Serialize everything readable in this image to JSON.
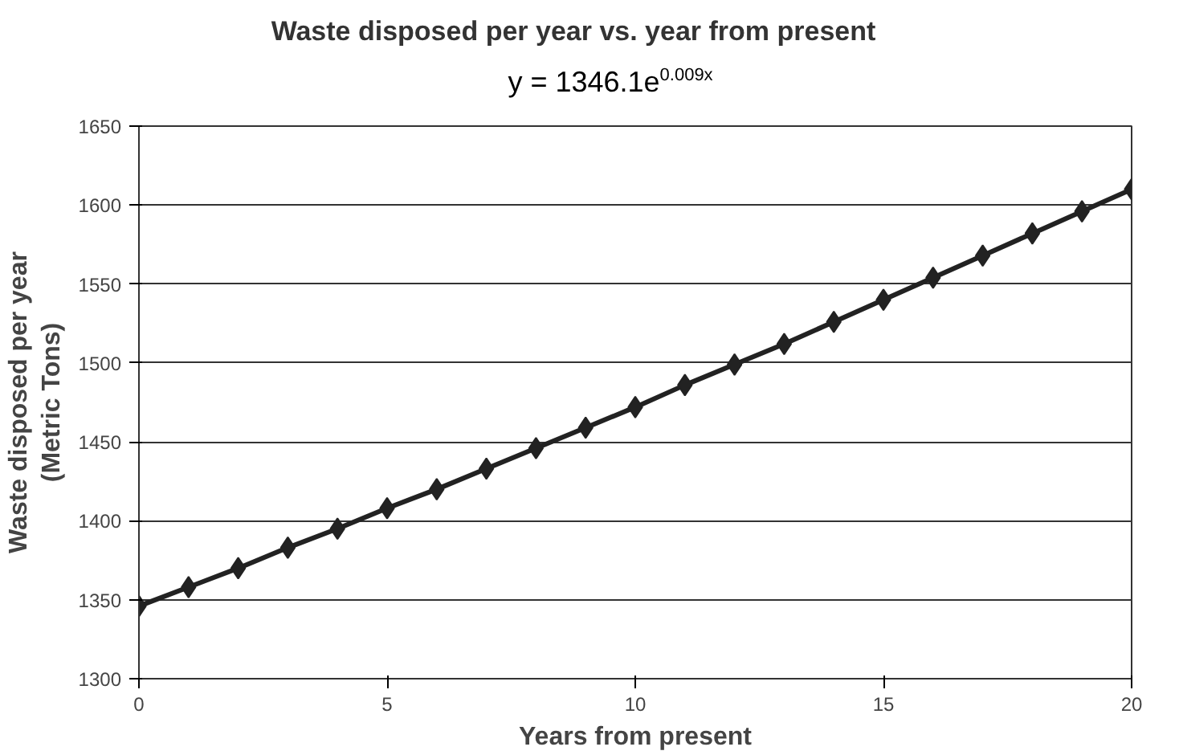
{
  "chart_data": {
    "type": "line",
    "title": "Waste disposed per year vs. year from present",
    "xlabel": "Years from present",
    "ylabel": "Waste disposed per year (Metric Tons)",
    "annotations": [
      "y = 1346.1e$^{0.009x}$"
    ],
    "x": [
      0,
      1,
      2,
      3,
      4,
      5,
      6,
      7,
      8,
      9,
      10,
      11,
      12,
      13,
      14,
      15,
      16,
      17,
      18,
      19,
      20
    ],
    "series": [
      {
        "color": "#222222",
        "values": [
          1346,
          1358,
          1370,
          1383,
          1395,
          1408,
          1420,
          1433,
          1446,
          1459,
          1472,
          1486,
          1499,
          1512,
          1526,
          1540,
          1554,
          1568,
          1582,
          1596,
          1610
        ]
      }
    ],
    "xlim": [
      0,
      20
    ],
    "xticks": [
      0,
      5,
      10,
      15,
      20
    ],
    "ylim": [
      1300,
      1650
    ],
    "yticks": [
      1300,
      1350,
      1400,
      1450,
      1500,
      1550,
      1600,
      1650
    ],
    "grid": "y",
    "marker": "diamond",
    "line_style": "solid"
  }
}
